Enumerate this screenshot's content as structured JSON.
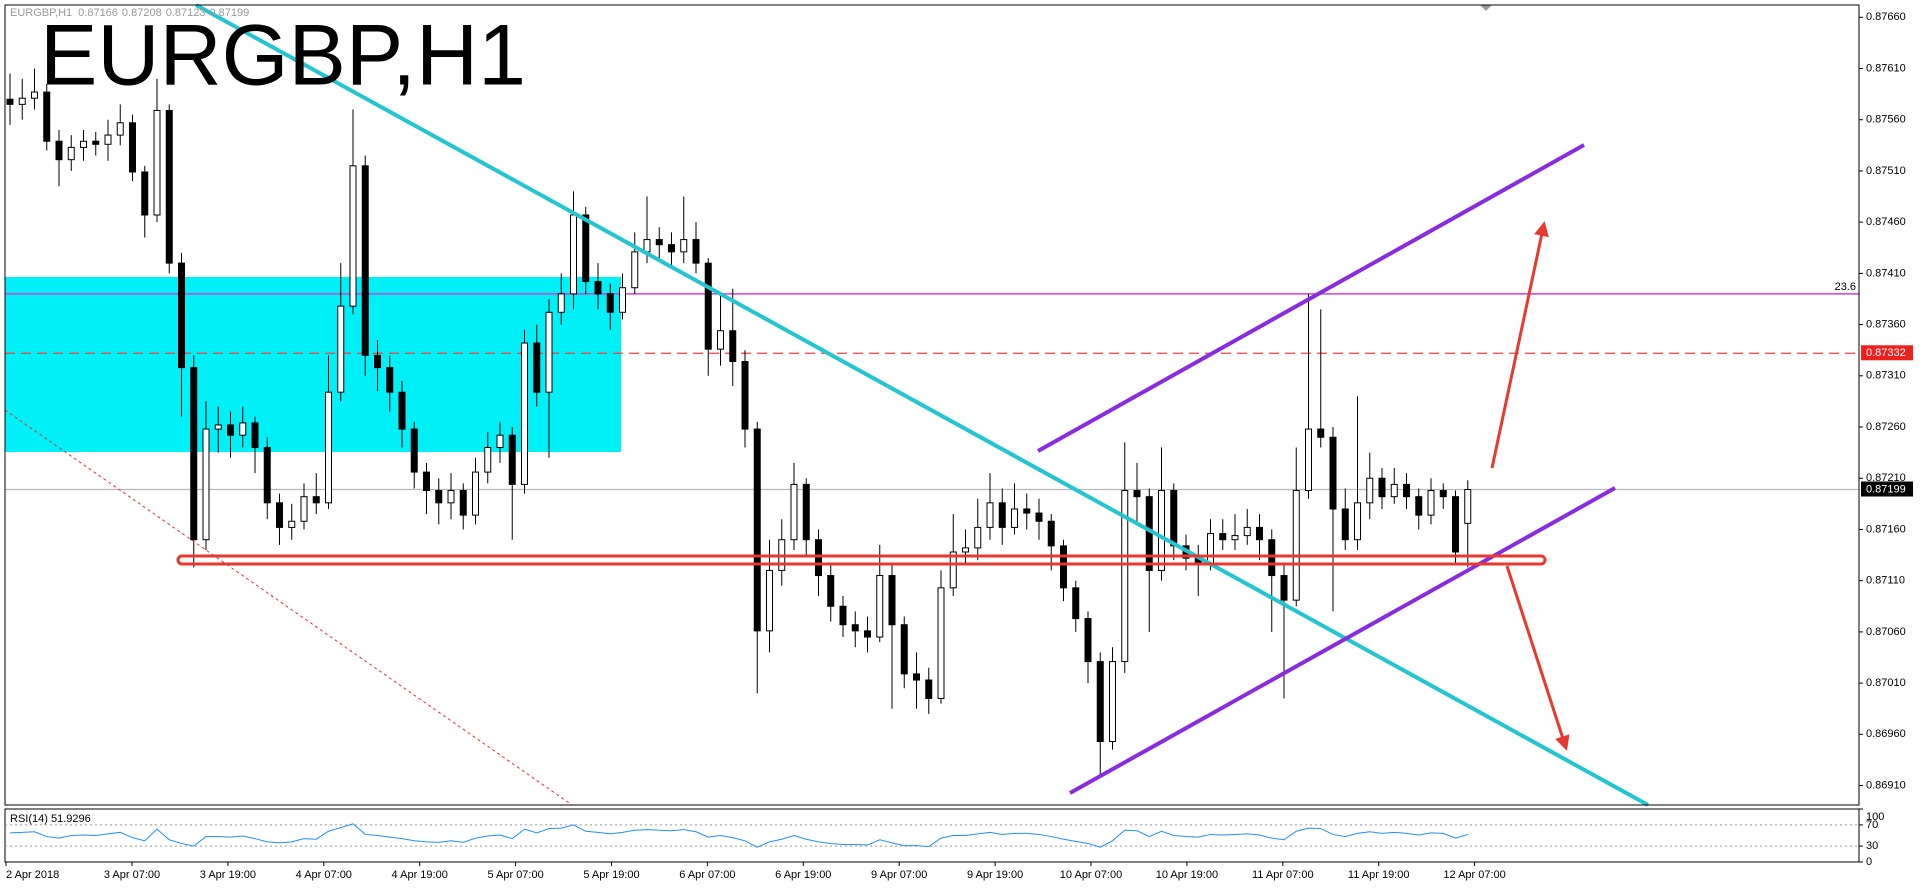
{
  "chart_data": {
    "type": "candlestick",
    "title": "EURGBP,H1",
    "ylim": [
      0.86891,
      0.87672
    ],
    "yticks": [
      {
        "value": 0.8766,
        "label": "0.87660"
      },
      {
        "value": 0.8761,
        "label": "0.87610"
      },
      {
        "value": 0.8756,
        "label": "0.87560"
      },
      {
        "value": 0.8751,
        "label": "0.87510"
      },
      {
        "value": 0.8746,
        "label": "0.87460"
      },
      {
        "value": 0.8741,
        "label": "0.87410"
      },
      {
        "value": 0.8736,
        "label": "0.87360"
      },
      {
        "value": 0.8731,
        "label": "0.87310"
      },
      {
        "value": 0.8726,
        "label": "0.87260"
      },
      {
        "value": 0.8721,
        "label": "0.87210"
      },
      {
        "value": 0.8716,
        "label": "0.87160"
      },
      {
        "value": 0.8711,
        "label": "0.87110"
      },
      {
        "value": 0.8706,
        "label": "0.87060"
      },
      {
        "value": 0.8701,
        "label": "0.87010"
      },
      {
        "value": 0.8696,
        "label": "0.86960"
      },
      {
        "value": 0.8691,
        "label": "0.86910"
      }
    ],
    "time_labels": [
      "2 Apr 2018",
      "3 Apr 07:00",
      "3 Apr 19:00",
      "4 Apr 07:00",
      "4 Apr 19:00",
      "5 Apr 07:00",
      "5 Apr 19:00",
      "6 Apr 07:00",
      "6 Apr 19:00",
      "9 Apr 07:00",
      "9 Apr 19:00",
      "10 Apr 07:00",
      "10 Apr 19:00",
      "11 Apr 07:00",
      "11 Apr 19:00",
      "12 Apr 07:00"
    ],
    "candles": [
      [
        0.8758,
        0.87605,
        0.87555,
        0.87575
      ],
      [
        0.87575,
        0.876,
        0.8756,
        0.87581
      ],
      [
        0.87581,
        0.8761,
        0.8757,
        0.87587
      ],
      [
        0.87587,
        0.87595,
        0.8753,
        0.87539
      ],
      [
        0.87539,
        0.8755,
        0.87495,
        0.87521
      ],
      [
        0.87521,
        0.87545,
        0.8751,
        0.87533
      ],
      [
        0.87533,
        0.8755,
        0.8752,
        0.87539
      ],
      [
        0.87539,
        0.87548,
        0.87525,
        0.87536
      ],
      [
        0.87536,
        0.8756,
        0.8752,
        0.87545
      ],
      [
        0.87545,
        0.87575,
        0.87535,
        0.87557
      ],
      [
        0.87557,
        0.87565,
        0.875,
        0.87509
      ],
      [
        0.87509,
        0.87515,
        0.87445,
        0.87467
      ],
      [
        0.87467,
        0.876,
        0.8746,
        0.87569
      ],
      [
        0.87569,
        0.87575,
        0.8741,
        0.8742
      ],
      [
        0.8742,
        0.8743,
        0.8727,
        0.87318
      ],
      [
        0.87318,
        0.8733,
        0.87123,
        0.8715
      ],
      [
        0.8715,
        0.87285,
        0.8714,
        0.87258
      ],
      [
        0.87258,
        0.8728,
        0.87235,
        0.87262
      ],
      [
        0.87262,
        0.87275,
        0.8723,
        0.87252
      ],
      [
        0.87252,
        0.8728,
        0.8724,
        0.87264
      ],
      [
        0.87264,
        0.8727,
        0.87215,
        0.8724
      ],
      [
        0.8724,
        0.8725,
        0.8717,
        0.87186
      ],
      [
        0.87186,
        0.87195,
        0.87145,
        0.87162
      ],
      [
        0.87162,
        0.87185,
        0.8715,
        0.87168
      ],
      [
        0.87168,
        0.87205,
        0.8716,
        0.87192
      ],
      [
        0.87192,
        0.87215,
        0.87175,
        0.87186
      ],
      [
        0.87186,
        0.8733,
        0.8718,
        0.87294
      ],
      [
        0.87294,
        0.8742,
        0.87285,
        0.87378
      ],
      [
        0.87378,
        0.8757,
        0.8737,
        0.87515
      ],
      [
        0.87515,
        0.87525,
        0.8731,
        0.8733
      ],
      [
        0.8733,
        0.87345,
        0.87295,
        0.87318
      ],
      [
        0.87318,
        0.8733,
        0.87275,
        0.87294
      ],
      [
        0.87294,
        0.87305,
        0.8724,
        0.87258
      ],
      [
        0.87258,
        0.87265,
        0.872,
        0.87216
      ],
      [
        0.87216,
        0.87225,
        0.87175,
        0.87198
      ],
      [
        0.87198,
        0.8721,
        0.87165,
        0.87186
      ],
      [
        0.87186,
        0.87215,
        0.8717,
        0.87198
      ],
      [
        0.87198,
        0.87205,
        0.8716,
        0.87174
      ],
      [
        0.87174,
        0.8723,
        0.87165,
        0.87216
      ],
      [
        0.87216,
        0.87255,
        0.87205,
        0.8724
      ],
      [
        0.8724,
        0.87265,
        0.87225,
        0.87252
      ],
      [
        0.87252,
        0.8726,
        0.8715,
        0.87204
      ],
      [
        0.87204,
        0.87355,
        0.87195,
        0.87342
      ],
      [
        0.87342,
        0.8736,
        0.8728,
        0.87294
      ],
      [
        0.87294,
        0.87385,
        0.8723,
        0.87372
      ],
      [
        0.87372,
        0.8741,
        0.8736,
        0.8739
      ],
      [
        0.8739,
        0.8749,
        0.87375,
        0.87467
      ],
      [
        0.87467,
        0.87475,
        0.8739,
        0.87402
      ],
      [
        0.87402,
        0.8742,
        0.87375,
        0.8739
      ],
      [
        0.8739,
        0.874,
        0.87355,
        0.87372
      ],
      [
        0.87372,
        0.8741,
        0.87365,
        0.87396
      ],
      [
        0.87396,
        0.8745,
        0.8739,
        0.87431
      ],
      [
        0.87431,
        0.87485,
        0.8742,
        0.87443
      ],
      [
        0.87443,
        0.87455,
        0.87425,
        0.87438
      ],
      [
        0.87438,
        0.8745,
        0.87415,
        0.87431
      ],
      [
        0.87431,
        0.87485,
        0.8742,
        0.87443
      ],
      [
        0.87443,
        0.8746,
        0.8741,
        0.8742
      ],
      [
        0.8742,
        0.87425,
        0.8731,
        0.87336
      ],
      [
        0.87336,
        0.8739,
        0.8732,
        0.87354
      ],
      [
        0.87354,
        0.87395,
        0.873,
        0.87324
      ],
      [
        0.87324,
        0.87335,
        0.8724,
        0.87258
      ],
      [
        0.87258,
        0.87265,
        0.87,
        0.87061
      ],
      [
        0.87061,
        0.8715,
        0.8704,
        0.8712
      ],
      [
        0.8712,
        0.8717,
        0.87105,
        0.8715
      ],
      [
        0.8715,
        0.87225,
        0.8714,
        0.87204
      ],
      [
        0.87204,
        0.8721,
        0.87135,
        0.8715
      ],
      [
        0.8715,
        0.8716,
        0.87095,
        0.87115
      ],
      [
        0.87115,
        0.87125,
        0.8707,
        0.87085
      ],
      [
        0.87085,
        0.87095,
        0.87055,
        0.87067
      ],
      [
        0.87067,
        0.8708,
        0.87045,
        0.87061
      ],
      [
        0.87061,
        0.87075,
        0.8704,
        0.87055
      ],
      [
        0.87055,
        0.87145,
        0.8705,
        0.87115
      ],
      [
        0.87115,
        0.87125,
        0.86985,
        0.87067
      ],
      [
        0.87067,
        0.87075,
        0.87005,
        0.87019
      ],
      [
        0.87019,
        0.8704,
        0.86985,
        0.87013
      ],
      [
        0.87013,
        0.87025,
        0.8698,
        0.86995
      ],
      [
        0.86995,
        0.8712,
        0.8699,
        0.87103
      ],
      [
        0.87103,
        0.87175,
        0.87095,
        0.87138
      ],
      [
        0.87138,
        0.8716,
        0.87125,
        0.87142
      ],
      [
        0.87142,
        0.8719,
        0.8713,
        0.87162
      ],
      [
        0.87162,
        0.87215,
        0.8715,
        0.87186
      ],
      [
        0.87186,
        0.872,
        0.87145,
        0.87162
      ],
      [
        0.87162,
        0.87205,
        0.87155,
        0.8718
      ],
      [
        0.8718,
        0.87195,
        0.8716,
        0.87176
      ],
      [
        0.87176,
        0.8719,
        0.8715,
        0.87168
      ],
      [
        0.87168,
        0.87175,
        0.8712,
        0.87144
      ],
      [
        0.87144,
        0.8715,
        0.8709,
        0.87103
      ],
      [
        0.87103,
        0.8711,
        0.8706,
        0.87073
      ],
      [
        0.87073,
        0.8708,
        0.8701,
        0.87031
      ],
      [
        0.87031,
        0.8704,
        0.8692,
        0.86953
      ],
      [
        0.86953,
        0.87045,
        0.86945,
        0.87031
      ],
      [
        0.87031,
        0.87245,
        0.8702,
        0.87198
      ],
      [
        0.87198,
        0.87225,
        0.87165,
        0.87192
      ],
      [
        0.87192,
        0.872,
        0.8706,
        0.8712
      ],
      [
        0.8712,
        0.8724,
        0.8711,
        0.87198
      ],
      [
        0.87198,
        0.87205,
        0.8713,
        0.87144
      ],
      [
        0.87144,
        0.87155,
        0.8712,
        0.87132
      ],
      [
        0.87132,
        0.87145,
        0.87095,
        0.87126
      ],
      [
        0.87126,
        0.8717,
        0.8712,
        0.87156
      ],
      [
        0.87156,
        0.8717,
        0.8714,
        0.8715
      ],
      [
        0.8715,
        0.87175,
        0.8714,
        0.87154
      ],
      [
        0.87154,
        0.8718,
        0.87145,
        0.87162
      ],
      [
        0.87162,
        0.87175,
        0.8713,
        0.8715
      ],
      [
        0.8715,
        0.8716,
        0.8706,
        0.87115
      ],
      [
        0.87115,
        0.87125,
        0.86995,
        0.87091
      ],
      [
        0.87091,
        0.8724,
        0.87085,
        0.87198
      ],
      [
        0.87198,
        0.8739,
        0.8719,
        0.87258
      ],
      [
        0.87258,
        0.87375,
        0.8724,
        0.8725
      ],
      [
        0.8725,
        0.8726,
        0.8708,
        0.8718
      ],
      [
        0.8718,
        0.872,
        0.8714,
        0.8715
      ],
      [
        0.8715,
        0.8729,
        0.8714,
        0.87186
      ],
      [
        0.87186,
        0.87235,
        0.8717,
        0.8721
      ],
      [
        0.8721,
        0.8722,
        0.8718,
        0.87192
      ],
      [
        0.87192,
        0.8722,
        0.87185,
        0.87204
      ],
      [
        0.87204,
        0.87215,
        0.8718,
        0.87192
      ],
      [
        0.87192,
        0.872,
        0.8716,
        0.87174
      ],
      [
        0.87174,
        0.8721,
        0.87165,
        0.87198
      ],
      [
        0.87198,
        0.87205,
        0.8718,
        0.87192
      ],
      [
        0.87192,
        0.87198,
        0.87125,
        0.87138
      ],
      [
        0.87166,
        0.87208,
        0.87123,
        0.87199
      ]
    ],
    "fibo": {
      "percent": 23.6,
      "price": 0.8739,
      "color": "#d43fd4"
    },
    "price_lines": [
      {
        "value": 0.87332,
        "label": "0.87332",
        "color": "#f04040",
        "dash": true,
        "tag_color": "#f02020"
      },
      {
        "value": 0.87199,
        "label": "0.87199",
        "color": "#b8b8b8",
        "dash": false,
        "tag_color": "#000000"
      }
    ],
    "rsi": {
      "label": "RSI(14) 51.9296",
      "ylim": [
        0,
        100
      ],
      "yticks": [
        100,
        70,
        30,
        0
      ],
      "levels": [
        70,
        30
      ],
      "color": "#1e90ff",
      "values": [
        55,
        56,
        57,
        48,
        45,
        50,
        51,
        50,
        53,
        56,
        46,
        40,
        62,
        42,
        35,
        30,
        48,
        48,
        47,
        49,
        44,
        38,
        36,
        38,
        44,
        43,
        58,
        65,
        72,
        52,
        50,
        47,
        44,
        40,
        38,
        37,
        40,
        37,
        45,
        49,
        51,
        44,
        62,
        55,
        63,
        64,
        70,
        58,
        56,
        53,
        56,
        60,
        61,
        60,
        59,
        61,
        57,
        47,
        50,
        46,
        40,
        28,
        38,
        43,
        50,
        43,
        38,
        35,
        33,
        33,
        32,
        42,
        36,
        31,
        31,
        29,
        45,
        50,
        50,
        53,
        56,
        52,
        54,
        54,
        52,
        48,
        43,
        39,
        35,
        28,
        40,
        60,
        59,
        48,
        58,
        50,
        48,
        47,
        52,
        51,
        52,
        53,
        51,
        45,
        42,
        58,
        64,
        63,
        52,
        48,
        54,
        57,
        54,
        56,
        54,
        51,
        55,
        54,
        45,
        51.9296
      ]
    }
  }
}
